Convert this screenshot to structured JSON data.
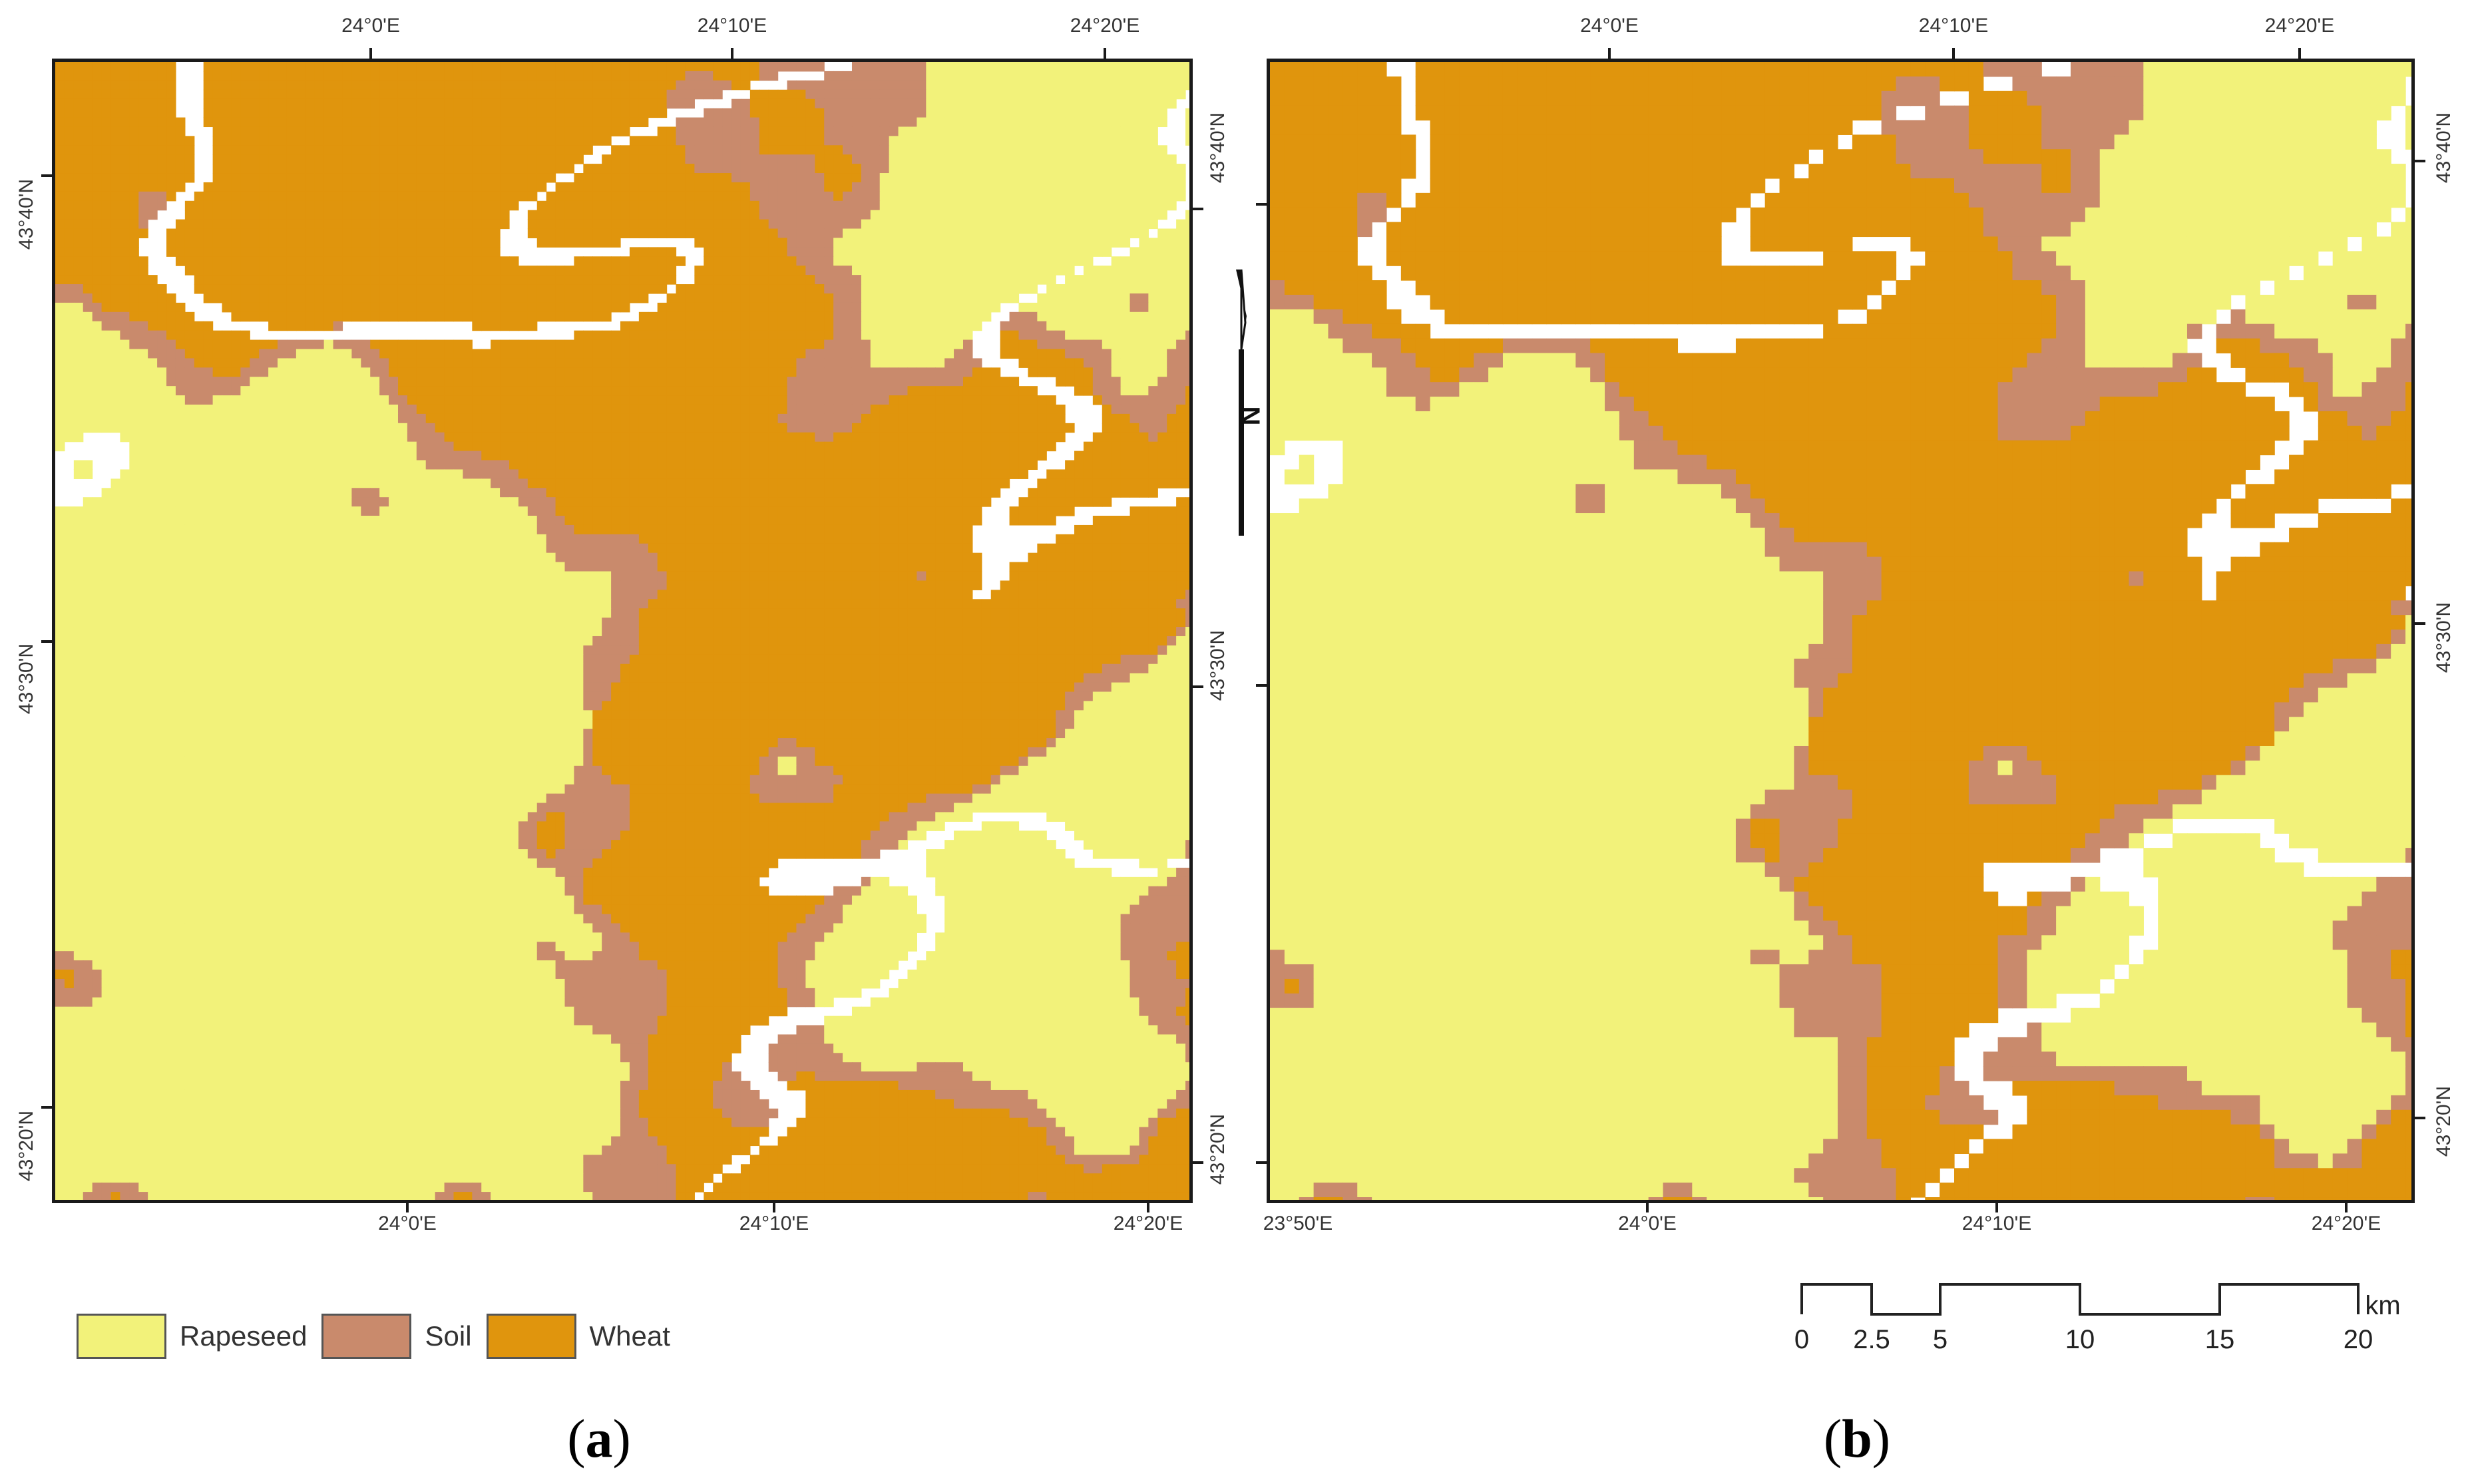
{
  "legend": {
    "items": [
      {
        "label": "Rapeseed",
        "color": "#f2f27a"
      },
      {
        "label": "Soil",
        "color": "#c98a6c"
      },
      {
        "label": "Wheat",
        "color": "#e0950d"
      }
    ]
  },
  "panel_a": {
    "label": "a",
    "top_labels": [
      "24°0'E",
      "24°10'E",
      "24°20'E"
    ],
    "bottom_labels": [
      "24°0'E",
      "24°10'E",
      "24°20'E"
    ],
    "left_labels": [
      "43°40'N",
      "43°30'N",
      "43°20'N"
    ],
    "right_labels": [
      "43°40'N",
      "43°30'N",
      "43°20'N"
    ]
  },
  "panel_b": {
    "label": "b",
    "top_labels": [
      "24°0'E",
      "24°10'E",
      "24°20'E"
    ],
    "bottom_labels": [
      "23°50'E",
      "24°0'E",
      "24°10'E",
      "24°20'E"
    ],
    "right_labels": [
      "43°40'N",
      "43°30'N",
      "43°20'N"
    ]
  },
  "north_arrow": {
    "label": "N"
  },
  "scale_bar": {
    "unit": "km",
    "ticks": [
      "0",
      "2.5",
      "5",
      "10",
      "15",
      "20"
    ]
  }
}
